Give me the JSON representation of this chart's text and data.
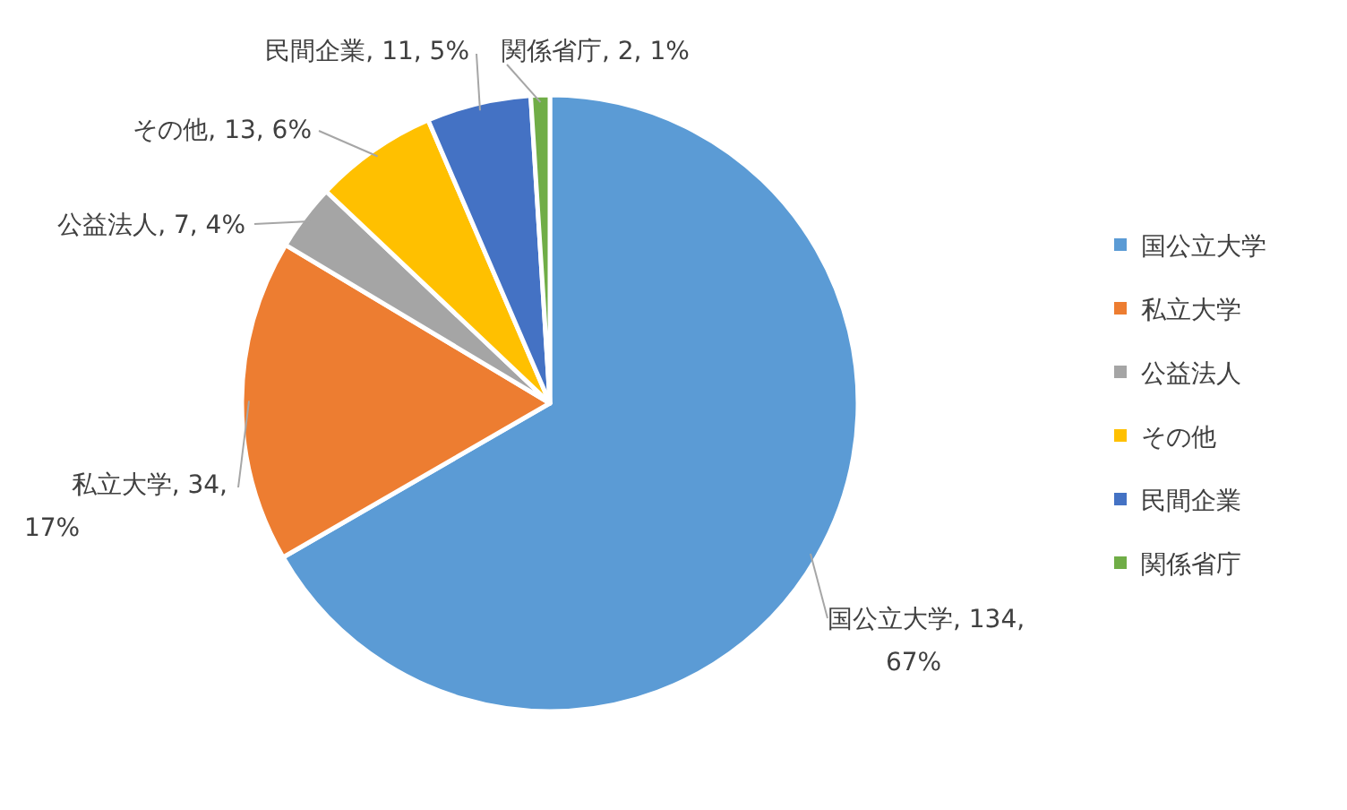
{
  "chart_data": {
    "type": "pie",
    "categories": [
      "国公立大学",
      "私立大学",
      "公益法人",
      "その他",
      "民間企業",
      "関係省庁"
    ],
    "values": [
      134,
      34,
      7,
      13,
      11,
      2
    ],
    "colors": [
      "#5b9bd5",
      "#ed7d31",
      "#a5a5a5",
      "#ffc000",
      "#4472c4",
      "#70ad47"
    ],
    "value_labels": [
      "国公立大学, 134, 67%",
      "私立大学, 34, 17%",
      "公益法人, 7, 4%",
      "その他, 13, 6%",
      "民間企業, 11, 5%",
      "関係省庁, 2, 1%"
    ],
    "legend": "right"
  }
}
